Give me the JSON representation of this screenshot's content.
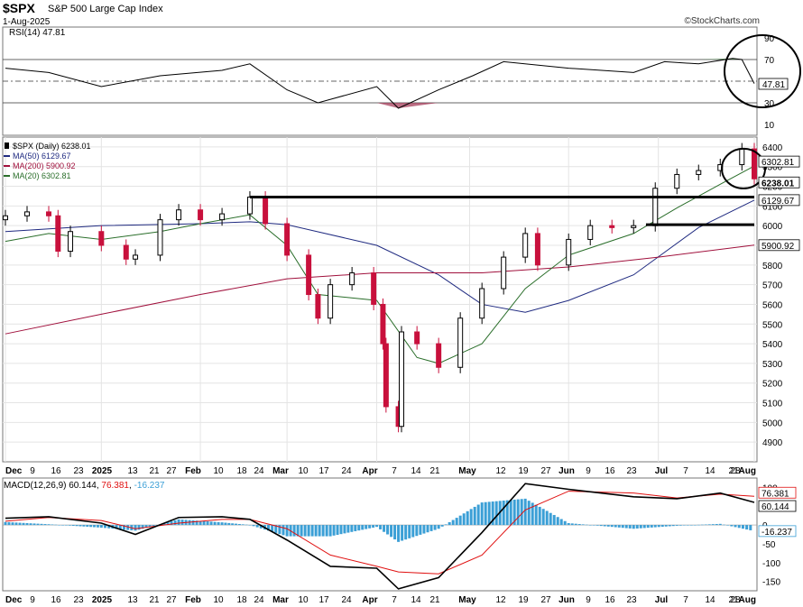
{
  "header": {
    "symbol": "$SPX",
    "name": "S&P 500 Large Cap Index",
    "date": "1-Aug-2025",
    "credit": "©StockCharts.com"
  },
  "rsi": {
    "label": "RSI(14) 47.81",
    "value_tag": "47.81",
    "ticks": [
      90,
      70,
      50,
      30,
      10
    ]
  },
  "price": {
    "legend": [
      {
        "text": "$SPX (Daily) 6238.01",
        "color": "#000000"
      },
      {
        "text": "MA(50) 6129.67",
        "color": "#1f2a80"
      },
      {
        "text": "MA(200) 5900.92",
        "color": "#a0103c"
      },
      {
        "text": "MA(20) 6302.81",
        "color": "#2a6e2a"
      }
    ],
    "ticks": [
      6400,
      6300,
      6200,
      6100,
      6000,
      5900,
      5800,
      5700,
      5600,
      5500,
      5400,
      5300,
      5200,
      5100,
      5000,
      4900
    ],
    "tags": [
      {
        "text": "6302.81",
        "bold": false
      },
      {
        "text": "6238.01",
        "bold": true
      },
      {
        "text": "6129.67",
        "bold": false
      },
      {
        "text": "5900.92",
        "bold": false
      }
    ]
  },
  "macd": {
    "label": "MACD(12,26,9) 60.144, 76.381, -16.237",
    "label_parts": [
      "MACD(12,26,9) ",
      "60.144",
      ", ",
      "76.381",
      ", ",
      "-16.237"
    ],
    "ticks": [
      100,
      50,
      0,
      -50,
      -100,
      -150
    ],
    "tags": [
      "76.381",
      "60.144",
      "-16.237"
    ]
  },
  "x_axis": {
    "labels": [
      "Dec",
      "9",
      "16",
      "23",
      "2025",
      "13",
      "21",
      "27",
      "Feb",
      "10",
      "18",
      "24",
      "Mar",
      "10",
      "17",
      "24",
      "Apr",
      "7",
      "14",
      "21",
      "May",
      "12",
      "19",
      "27",
      "Jun",
      "9",
      "16",
      "23",
      "Jul",
      "7",
      "14",
      "21",
      "28",
      "Aug"
    ],
    "bold": [
      "Dec",
      "2025",
      "Feb",
      "Mar",
      "Apr",
      "May",
      "Jun",
      "Jul",
      "Aug"
    ]
  },
  "colors": {
    "up": "#000000",
    "down": "#c8103c",
    "ma50": "#1f2a80",
    "ma200": "#a0103c",
    "ma20": "#2a6e2a",
    "hist": "#3b9fd6",
    "signal": "#e01010",
    "annotation": "#000000"
  },
  "chart_data": {
    "type": "line",
    "title": "$SPX S&P 500 Large Cap Index",
    "date_range": [
      "2024-12-02",
      "2025-08-01"
    ],
    "panels": [
      {
        "name": "RSI(14)",
        "ylim": [
          0,
          100
        ],
        "reference_lines": [
          70,
          50,
          30
        ],
        "last": 47.81,
        "series": [
          {
            "name": "RSI(14)",
            "x": [
              "2024-12-02",
              "2024-12-16",
              "2025-01-02",
              "2025-01-21",
              "2025-02-10",
              "2025-02-19",
              "2025-03-03",
              "2025-03-13",
              "2025-04-01",
              "2025-04-08",
              "2025-04-21",
              "2025-05-02",
              "2025-05-12",
              "2025-06-02",
              "2025-06-23",
              "2025-07-03",
              "2025-07-14",
              "2025-07-25",
              "2025-07-28",
              "2025-08-01"
            ],
            "values": [
              62,
              58,
              45,
              55,
              60,
              66,
              42,
              30,
              45,
              25,
              42,
              55,
              68,
              62,
              58,
              68,
              66,
              71,
              70,
              47.81
            ]
          }
        ]
      },
      {
        "name": "$SPX (Daily)",
        "ylim": [
          4800,
          6450
        ],
        "grid": true,
        "last": 6238.01,
        "series": [
          {
            "name": "$SPX (Daily)",
            "x": [
              "2024-12-02",
              "2024-12-09",
              "2024-12-16",
              "2024-12-19",
              "2024-12-23",
              "2025-01-02",
              "2025-01-10",
              "2025-01-13",
              "2025-01-21",
              "2025-01-27",
              "2025-02-03",
              "2025-02-10",
              "2025-02-19",
              "2025-02-24",
              "2025-03-03",
              "2025-03-10",
              "2025-03-13",
              "2025-03-17",
              "2025-03-24",
              "2025-03-31",
              "2025-04-03",
              "2025-04-04",
              "2025-04-08",
              "2025-04-09",
              "2025-04-14",
              "2025-04-21",
              "2025-04-28",
              "2025-05-05",
              "2025-05-12",
              "2025-05-19",
              "2025-05-23",
              "2025-06-02",
              "2025-06-09",
              "2025-06-16",
              "2025-06-23",
              "2025-06-30",
              "2025-07-07",
              "2025-07-14",
              "2025-07-21",
              "2025-07-28",
              "2025-08-01"
            ],
            "values": [
              6050,
              6070,
              6050,
              5870,
              5970,
              5900,
              5830,
              5850,
              6030,
              6080,
              6030,
              6060,
              6145,
              6010,
              5850,
              5650,
              5530,
              5700,
              5760,
              5600,
              5400,
              5080,
              4980,
              5460,
              5400,
              5280,
              5530,
              5680,
              5840,
              5960,
              5800,
              5930,
              6000,
              5990,
              6000,
              6190,
              6260,
              6280,
              6310,
              6390,
              6238.01
            ]
          },
          {
            "name": "MA(50)",
            "x": [
              "2024-12-02",
              "2025-01-02",
              "2025-02-03",
              "2025-02-19",
              "2025-03-03",
              "2025-04-01",
              "2025-04-21",
              "2025-05-05",
              "2025-05-19",
              "2025-06-02",
              "2025-06-23",
              "2025-07-14",
              "2025-08-01"
            ],
            "values": [
              5970,
              6000,
              6010,
              6020,
              6005,
              5900,
              5750,
              5600,
              5560,
              5620,
              5750,
              5990,
              6129.67
            ]
          },
          {
            "name": "MA(200)",
            "x": [
              "2024-12-02",
              "2025-01-02",
              "2025-02-03",
              "2025-03-03",
              "2025-04-01",
              "2025-05-05",
              "2025-06-02",
              "2025-07-01",
              "2025-08-01"
            ],
            "values": [
              5450,
              5550,
              5650,
              5730,
              5760,
              5760,
              5790,
              5840,
              5900.92
            ]
          },
          {
            "name": "MA(20)",
            "x": [
              "2024-12-02",
              "2024-12-16",
              "2025-01-02",
              "2025-01-21",
              "2025-02-03",
              "2025-02-19",
              "2025-03-03",
              "2025-03-13",
              "2025-04-01",
              "2025-04-14",
              "2025-04-21",
              "2025-05-05",
              "2025-05-19",
              "2025-06-02",
              "2025-06-23",
              "2025-07-07",
              "2025-07-21",
              "2025-08-01"
            ],
            "values": [
              5920,
              5960,
              5930,
              5970,
              6010,
              6055,
              5900,
              5650,
              5620,
              5330,
              5300,
              5400,
              5680,
              5850,
              5960,
              6090,
              6210,
              6302.81
            ]
          }
        ],
        "annotations": [
          {
            "type": "horizontal_line",
            "value": 6145,
            "from": "2025-02-19",
            "to": "2025-08-01"
          },
          {
            "type": "horizontal_line",
            "value": 6005,
            "from": "2025-06-27",
            "to": "2025-08-01"
          },
          {
            "type": "circle",
            "at": "2025-08-01"
          }
        ]
      },
      {
        "name": "MACD(12,26,9)",
        "ylim": [
          -175,
          125
        ],
        "last": {
          "macd": 60.144,
          "signal": 76.381,
          "histogram": -16.237
        },
        "series": [
          {
            "name": "MACD",
            "x": [
              "2024-12-02",
              "2024-12-16",
              "2025-01-02",
              "2025-01-13",
              "2025-01-27",
              "2025-02-10",
              "2025-02-19",
              "2025-03-03",
              "2025-03-17",
              "2025-04-01",
              "2025-04-08",
              "2025-04-21",
              "2025-05-05",
              "2025-05-19",
              "2025-06-02",
              "2025-06-23",
              "2025-07-07",
              "2025-07-21",
              "2025-08-01"
            ],
            "values": [
              18,
              22,
              5,
              -25,
              20,
              22,
              15,
              -40,
              -110,
              -115,
              -170,
              -140,
              -20,
              110,
              95,
              75,
              70,
              85,
              60.144
            ]
          },
          {
            "name": "Signal",
            "x": [
              "2024-12-02",
              "2024-12-16",
              "2025-01-02",
              "2025-01-13",
              "2025-01-27",
              "2025-02-10",
              "2025-02-19",
              "2025-03-03",
              "2025-03-17",
              "2025-04-01",
              "2025-04-08",
              "2025-04-21",
              "2025-05-05",
              "2025-05-19",
              "2025-06-02",
              "2025-06-23",
              "2025-07-07",
              "2025-07-21",
              "2025-08-01"
            ],
            "values": [
              10,
              20,
              12,
              -10,
              5,
              15,
              15,
              -10,
              -80,
              -110,
              -125,
              -130,
              -80,
              40,
              90,
              85,
              72,
              82,
              76.381
            ]
          }
        ]
      }
    ],
    "x_tick_labels": [
      "Dec",
      "9",
      "16",
      "23",
      "2025",
      "13",
      "21",
      "27",
      "Feb",
      "10",
      "18",
      "24",
      "Mar",
      "10",
      "17",
      "24",
      "Apr",
      "7",
      "14",
      "21",
      "May",
      "12",
      "19",
      "27",
      "Jun",
      "9",
      "16",
      "23",
      "Jul",
      "7",
      "14",
      "21",
      "28",
      "Aug"
    ]
  }
}
